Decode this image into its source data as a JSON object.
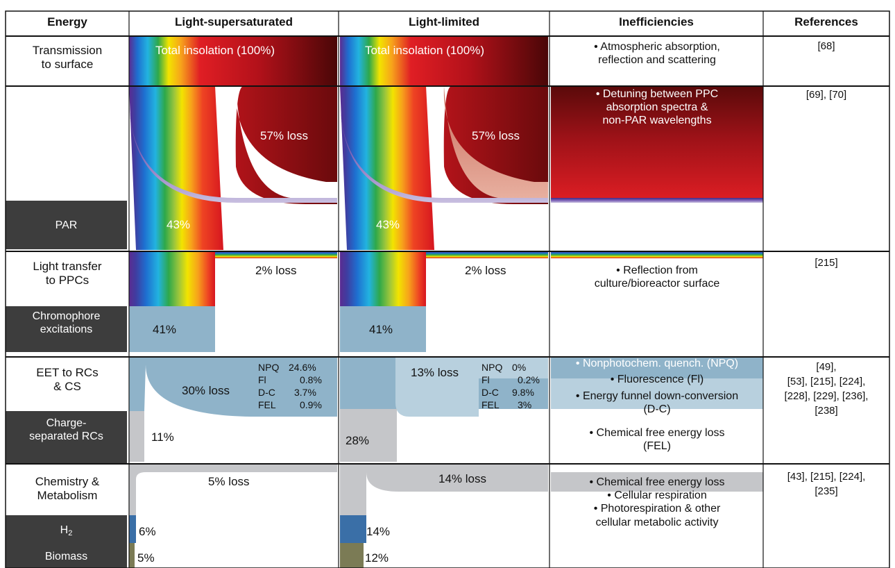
{
  "headers": {
    "energy": "Energy",
    "light_supersaturated": "Light-supersaturated",
    "light_limited": "Light-limited",
    "inefficiencies": "Inefficiencies",
    "references": "References"
  },
  "stages": [
    {
      "label": "Transmission\nto surface"
    },
    {
      "label": "PAR"
    },
    {
      "label": "Light transfer\nto PPCs"
    },
    {
      "label": "Chromophore\nexcitations"
    },
    {
      "label": "EET to RCs\n& CS"
    },
    {
      "label": "Charge-\nseparated RCs"
    },
    {
      "label": "Chemistry &\nMetabolism"
    },
    {
      "label_main": "H",
      "label_sub": "2"
    },
    {
      "label": "Biomass"
    }
  ],
  "supersaturated": {
    "total": "Total insolation (100%)",
    "par_loss": "57% loss",
    "par": "43%",
    "transfer_loss": "2% loss",
    "excitations": "41%",
    "eet_loss": "30% loss",
    "eet_breakdown": [
      {
        "name": "NPQ",
        "value": "24.6%"
      },
      {
        "name": "Fl",
        "value": "0.8%"
      },
      {
        "name": "D-C",
        "value": "3.7%"
      },
      {
        "name": "FEL",
        "value": "0.9%"
      }
    ],
    "charge_separated": "11%",
    "chem_loss": "5% loss",
    "h2": "6%",
    "biomass": "5%",
    "values": {
      "par": 43,
      "excitations": 41,
      "charge_separated": 11,
      "h2": 6,
      "biomass": 5
    }
  },
  "limited": {
    "total": "Total insolation (100%)",
    "par_loss": "57% loss",
    "par": "43%",
    "transfer_loss": "2% loss",
    "excitations": "41%",
    "eet_loss": "13% loss",
    "eet_breakdown": [
      {
        "name": "NPQ",
        "value": "0%"
      },
      {
        "name": "Fl",
        "value": "0.2%"
      },
      {
        "name": "D-C",
        "value": "9.8%"
      },
      {
        "name": "FEL",
        "value": "3%"
      }
    ],
    "charge_separated": "28%",
    "chem_loss": "14% loss",
    "h2": "14%",
    "biomass": "12%",
    "values": {
      "par": 43,
      "excitations": 41,
      "charge_separated": 28,
      "h2": 14,
      "biomass": 12
    }
  },
  "inefficiencies": {
    "transmission": "• Atmospheric absorption,\nreflection and scattering",
    "par": "• Detuning between PPC\nabsorption spectra &\nnon-PAR wavelengths",
    "transfer": "• Reflection from\nculture/bioreactor surface",
    "eet_1": "• Nonphotochem. quench. (NPQ)",
    "eet_2": "• Fluorescence (Fl)",
    "eet_3": "• Energy funnel down-conversion\n(D-C)",
    "eet_4": "• Chemical free energy loss\n(FEL)",
    "chem": "• Chemical free energy loss\n• Cellular respiration\n• Photorespiration & other\ncellular metabolic activity"
  },
  "references": {
    "transmission": "[68]",
    "par": "[69], [70]",
    "transfer": "[215]",
    "eet": "[49],\n[53], [215], [224],\n[228], [229], [236],\n[238]",
    "chem": "[43], [215], [224],\n[235]"
  },
  "colors": {
    "dark_label_bg": "#3d3d3d",
    "excitation_blue": "#8fb3c9",
    "light_blue": "#b8d0de",
    "gray": "#c5c6c9",
    "h2_blue": "#3a6fa7",
    "biomass_olive": "#7b7b55",
    "loss_red": "#e01e24",
    "dark_red": "#5a0a0a",
    "purple": "#6a3d9a"
  }
}
